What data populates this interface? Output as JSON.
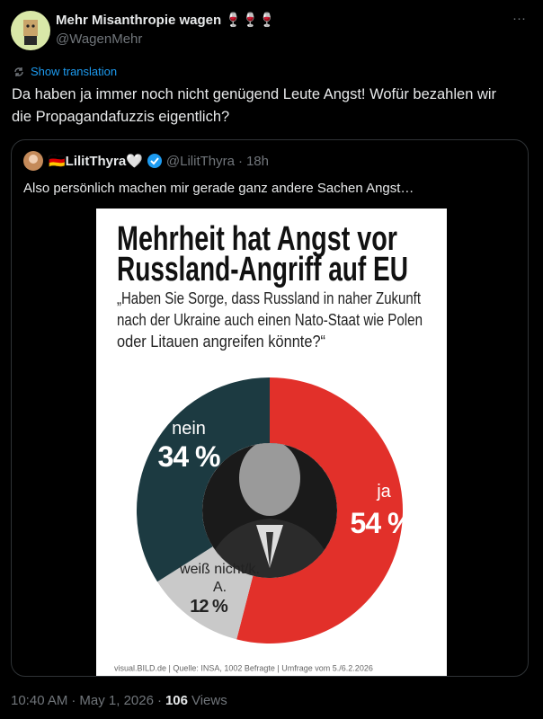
{
  "post": {
    "author_name": "Mehr Misanthropie wagen 🍷🍷🍷",
    "author_handle": "@WagenMehr",
    "more": "···",
    "translate": "Show translation",
    "text": "Da haben ja immer noch nicht genügend Leute Angst! Wofür bezahlen wir die Propagandafuzzis eigentlich?"
  },
  "quoted_post": {
    "author_name": "🇩🇪LilitThyra🤍",
    "author_handle": "@LilitThyra",
    "separator": "·",
    "time": "18h",
    "text": "Also persönlich machen mir gerade ganz andere Sachen Angst…"
  },
  "chart_data": {
    "type": "pie",
    "donut": true,
    "title": [
      "Mehrheit hat Angst vor",
      "Russland-Angriff auf EU"
    ],
    "subtitle": [
      "„Haben Sie Sorge, dass Russland in naher Zukunft",
      "nach der Ukraine auch einen Nato-Staat wie Polen",
      "oder Litauen angreifen könnte?“"
    ],
    "categories": [
      "ja",
      "weiß nicht/k. A.",
      "nein"
    ],
    "values": [
      54,
      12,
      34
    ],
    "value_labels": [
      "54 %",
      "12 %",
      "34 %"
    ],
    "colors": [
      "#e2302a",
      "#c9c9c9",
      "#1c3a41"
    ],
    "source": "visual.BILD.de | Quelle: INSA, 1002 Befragte | Umfrage vom 5./6.2.2026"
  },
  "footer": {
    "time": "10:40 AM",
    "separator": "·",
    "date": "May 1, 2026",
    "views": "106",
    "views_label": "Views"
  }
}
